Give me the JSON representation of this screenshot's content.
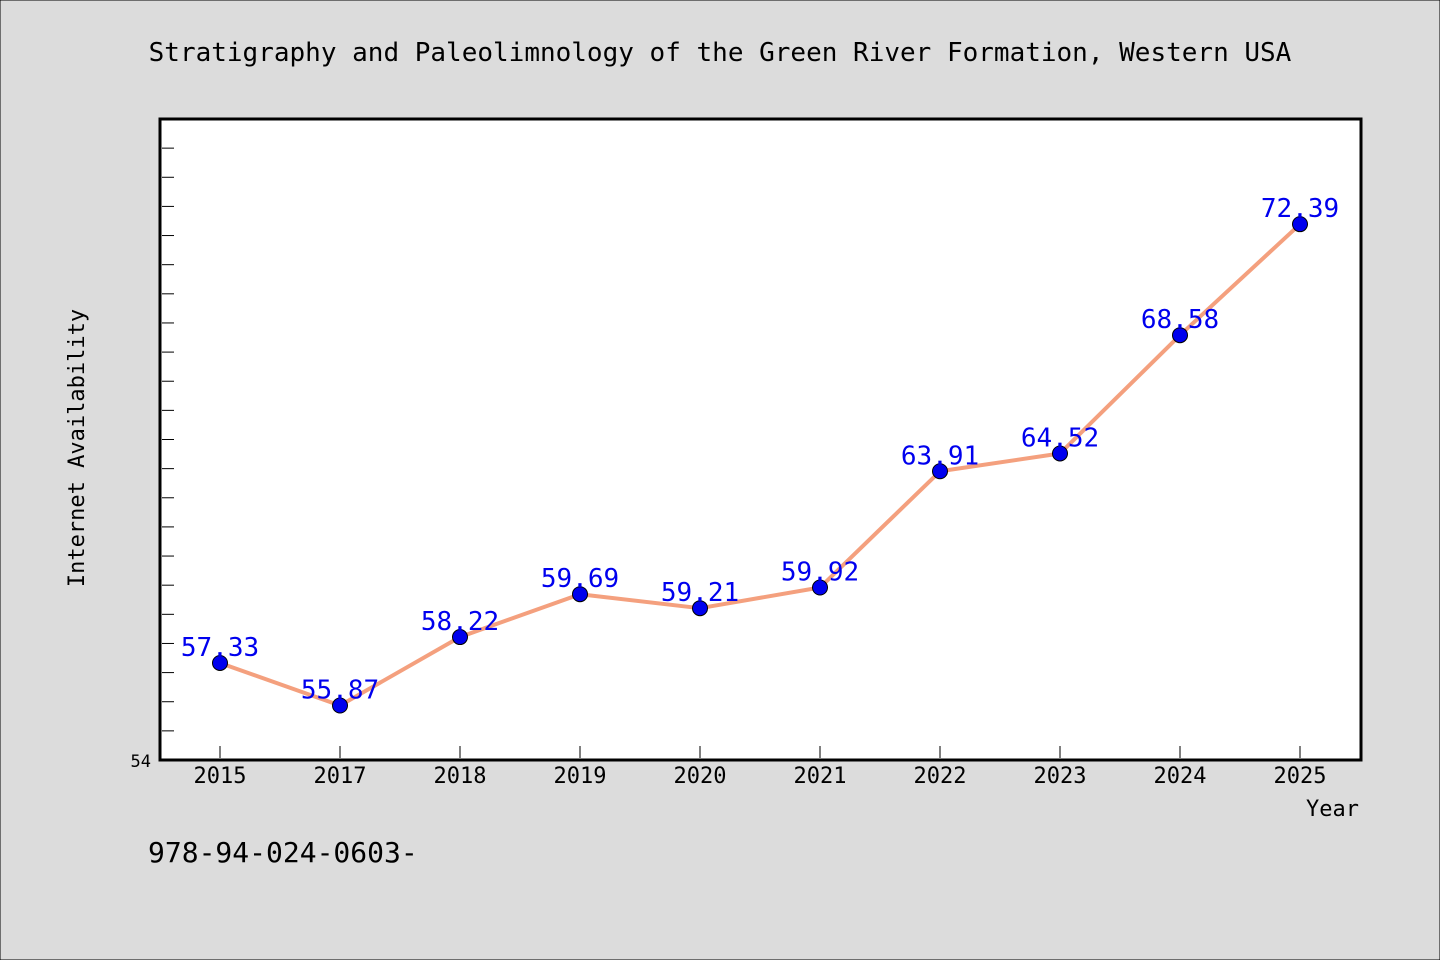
{
  "chart_data": {
    "type": "line",
    "title": "Stratigraphy and Paleolimnology of the Green River Formation, Western USA",
    "xlabel": "Year",
    "ylabel": "Internet Availability",
    "categories": [
      "2015",
      "2017",
      "2018",
      "2019",
      "2020",
      "2021",
      "2022",
      "2023",
      "2024",
      "2025"
    ],
    "values": [
      57.33,
      55.87,
      58.22,
      59.69,
      59.21,
      59.92,
      63.91,
      64.52,
      68.58,
      72.39
    ],
    "data_labels": [
      "57.33",
      "55.87",
      "58.22",
      "59.69",
      "59.21",
      "59.92",
      "63.91",
      "64.52",
      "68.58",
      "72.39"
    ],
    "ylim": [
      54,
      76
    ],
    "y_tick_label": "54",
    "y_minor_tick_step": 1,
    "grid": false,
    "legend": "none",
    "colors": {
      "background": "#dcdcdc",
      "plot_background": "#ffffff",
      "line": "#f4a07e",
      "marker": "#0000ee",
      "data_label": "#0000ee",
      "axis": "#000000"
    }
  },
  "footer": {
    "isbn_text": "978-94-024-0603-"
  }
}
